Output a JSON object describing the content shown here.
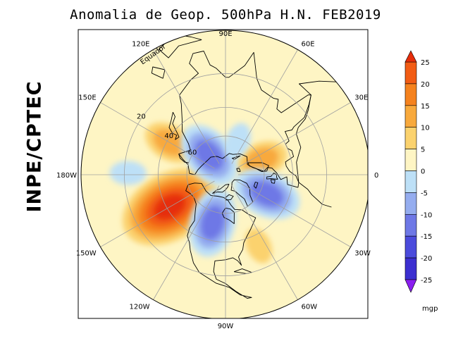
{
  "title": "Anomalia de Geop. 500hPa H.N. FEB2019",
  "side_label": "INPE/CPTEC",
  "map": {
    "projection": "polar stereographic (North Pole)",
    "longitude_labels": [
      {
        "text": "90E",
        "lon": 90
      },
      {
        "text": "60E",
        "lon": 60
      },
      {
        "text": "30E",
        "lon": 30
      },
      {
        "text": "0",
        "lon": 0
      },
      {
        "text": "30W",
        "lon": -30
      },
      {
        "text": "60W",
        "lon": -60
      },
      {
        "text": "90W",
        "lon": -90
      },
      {
        "text": "120W",
        "lon": -120
      },
      {
        "text": "150W",
        "lon": -150
      },
      {
        "text": "180W",
        "lon": 180
      },
      {
        "text": "150E",
        "lon": 150
      },
      {
        "text": "120E",
        "lon": 120
      }
    ],
    "latitude_labels": [
      {
        "text": "Equador",
        "lat": 0
      },
      {
        "text": "20",
        "lat": 20
      },
      {
        "text": "40",
        "lat": 40
      },
      {
        "text": "60",
        "lat": 60
      }
    ],
    "anomaly_centers": [
      {
        "kind": "positive",
        "lon": -150,
        "lat": 42,
        "max": 25
      },
      {
        "kind": "positive",
        "lon": 150,
        "lat": 42,
        "max": 10
      },
      {
        "kind": "positive",
        "lon": 22,
        "lat": 60,
        "max": 10
      },
      {
        "kind": "positive",
        "lon": -65,
        "lat": 33,
        "max": 5
      },
      {
        "kind": "negative",
        "lon": 130,
        "lat": 70,
        "max": -15
      },
      {
        "kind": "negative",
        "lon": -105,
        "lat": 52,
        "max": -15
      },
      {
        "kind": "negative",
        "lon": -25,
        "lat": 55,
        "max": -15
      },
      {
        "kind": "negative",
        "lon": 70,
        "lat": 62,
        "max": -5
      },
      {
        "kind": "negative",
        "lon": 179,
        "lat": 22,
        "max": -5
      }
    ]
  },
  "colorbar": {
    "unit": "mgp",
    "ticks": [
      "25",
      "20",
      "15",
      "10",
      "5",
      "0",
      "-5",
      "-10",
      "-15",
      "-20",
      "-25"
    ],
    "colors": {
      "above_25": "#e62d0a",
      "20_25": "#f25c14",
      "15_20": "#f5821e",
      "10_15": "#f8a93c",
      "5_10": "#fbd26e",
      "0_5": "#fef5c4",
      "m5_0": "#bde0f7",
      "m10_m5": "#95adef",
      "m15_m10": "#6e78e6",
      "m20_m15": "#4b4bdc",
      "m25_m20": "#3c2fd0",
      "below_m25": "#8a1ef0"
    }
  }
}
